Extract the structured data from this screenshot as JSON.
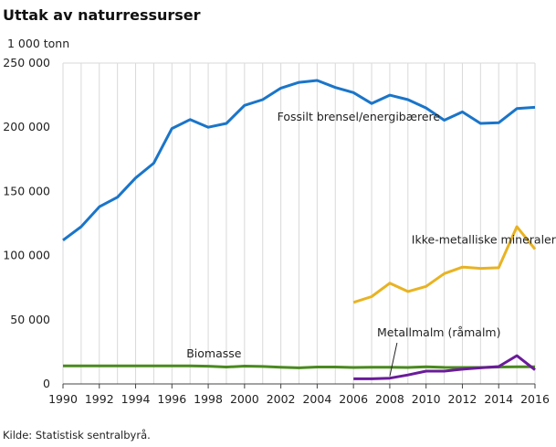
{
  "page": {
    "title": "Uttak av naturressurser",
    "unit": "1 000 tonn",
    "source": "Kilde: Statistisk sentralbyrå."
  },
  "chart_data": {
    "type": "line",
    "title": "Uttak av naturressurser",
    "ylabel": "1 000 tonn",
    "xlabel": "",
    "xlim": [
      1990,
      2016
    ],
    "ylim": [
      0,
      250000
    ],
    "x_ticks": [
      1990,
      1992,
      1994,
      1996,
      1998,
      2000,
      2002,
      2004,
      2006,
      2008,
      2010,
      2012,
      2014,
      2016
    ],
    "x_tick_labels": [
      "1990",
      "1992",
      "1994",
      "1996",
      "1998",
      "2000",
      "2002",
      "2004",
      "2006",
      "2008",
      "2010",
      "2012",
      "2014",
      "2016"
    ],
    "y_ticks": [
      0,
      50000,
      100000,
      150000,
      200000,
      250000
    ],
    "y_tick_labels": [
      "0",
      "50 000",
      "100 000",
      "150 000",
      "200 000",
      "250 000"
    ],
    "grid": "vertical",
    "series": [
      {
        "name": "Fossilt brensel/energibærere",
        "color": "#1a75c9",
        "label_anchor": [
          2001.8,
          205000
        ],
        "x": [
          1990,
          1991,
          1992,
          1993,
          1994,
          1995,
          1996,
          1997,
          1998,
          1999,
          2000,
          2001,
          2002,
          2003,
          2004,
          2005,
          2006,
          2007,
          2008,
          2009,
          2010,
          2011,
          2012,
          2013,
          2014,
          2015,
          2016
        ],
        "values": [
          112000,
          122500,
          138000,
          145500,
          160500,
          172000,
          199000,
          206000,
          200000,
          203000,
          217000,
          221500,
          230500,
          235000,
          236500,
          231000,
          227000,
          218500,
          225000,
          221500,
          215000,
          205500,
          212000,
          203000,
          203500,
          214500,
          215500
        ]
      },
      {
        "name": "Ikke-metalliske mineraler",
        "color": "#e8b323",
        "label_anchor": [
          2009.2,
          109500
        ],
        "x": [
          2006,
          2007,
          2008,
          2009,
          2010,
          2011,
          2012,
          2013,
          2014,
          2015,
          2016
        ],
        "values": [
          63500,
          68000,
          78500,
          72000,
          76000,
          86000,
          91000,
          90000,
          90500,
          122500,
          105000
        ]
      },
      {
        "name": "Biomasse",
        "color": "#4a8a1f",
        "label_anchor": [
          1996.8,
          20500
        ],
        "x": [
          1990,
          1991,
          1992,
          1993,
          1994,
          1995,
          1996,
          1997,
          1998,
          1999,
          2000,
          2001,
          2002,
          2003,
          2004,
          2005,
          2006,
          2007,
          2008,
          2009,
          2010,
          2011,
          2012,
          2013,
          2014,
          2015,
          2016
        ],
        "values": [
          14000,
          14000,
          14000,
          14000,
          14000,
          14000,
          14000,
          14000,
          13800,
          13200,
          13900,
          13600,
          13000,
          12500,
          13200,
          13200,
          12800,
          13000,
          13000,
          12800,
          13300,
          12900,
          12800,
          12800,
          13200,
          13300,
          13300
        ]
      },
      {
        "name": "Metallmalm (råmalm)",
        "color": "#6a1b9a",
        "label_anchor": [
          2007.3,
          37000
        ],
        "x": [
          2006,
          2007,
          2008,
          2009,
          2010,
          2011,
          2012,
          2013,
          2014,
          2015,
          2016
        ],
        "values": [
          4000,
          4000,
          4500,
          7000,
          10000,
          10000,
          11500,
          12500,
          13500,
          22000,
          11000
        ]
      }
    ],
    "annotations": [
      {
        "series": "Metallmalm (råmalm)",
        "type": "pointer-line",
        "from": [
          2008.4,
          32000
        ],
        "to": [
          2008.0,
          6000
        ]
      }
    ]
  }
}
